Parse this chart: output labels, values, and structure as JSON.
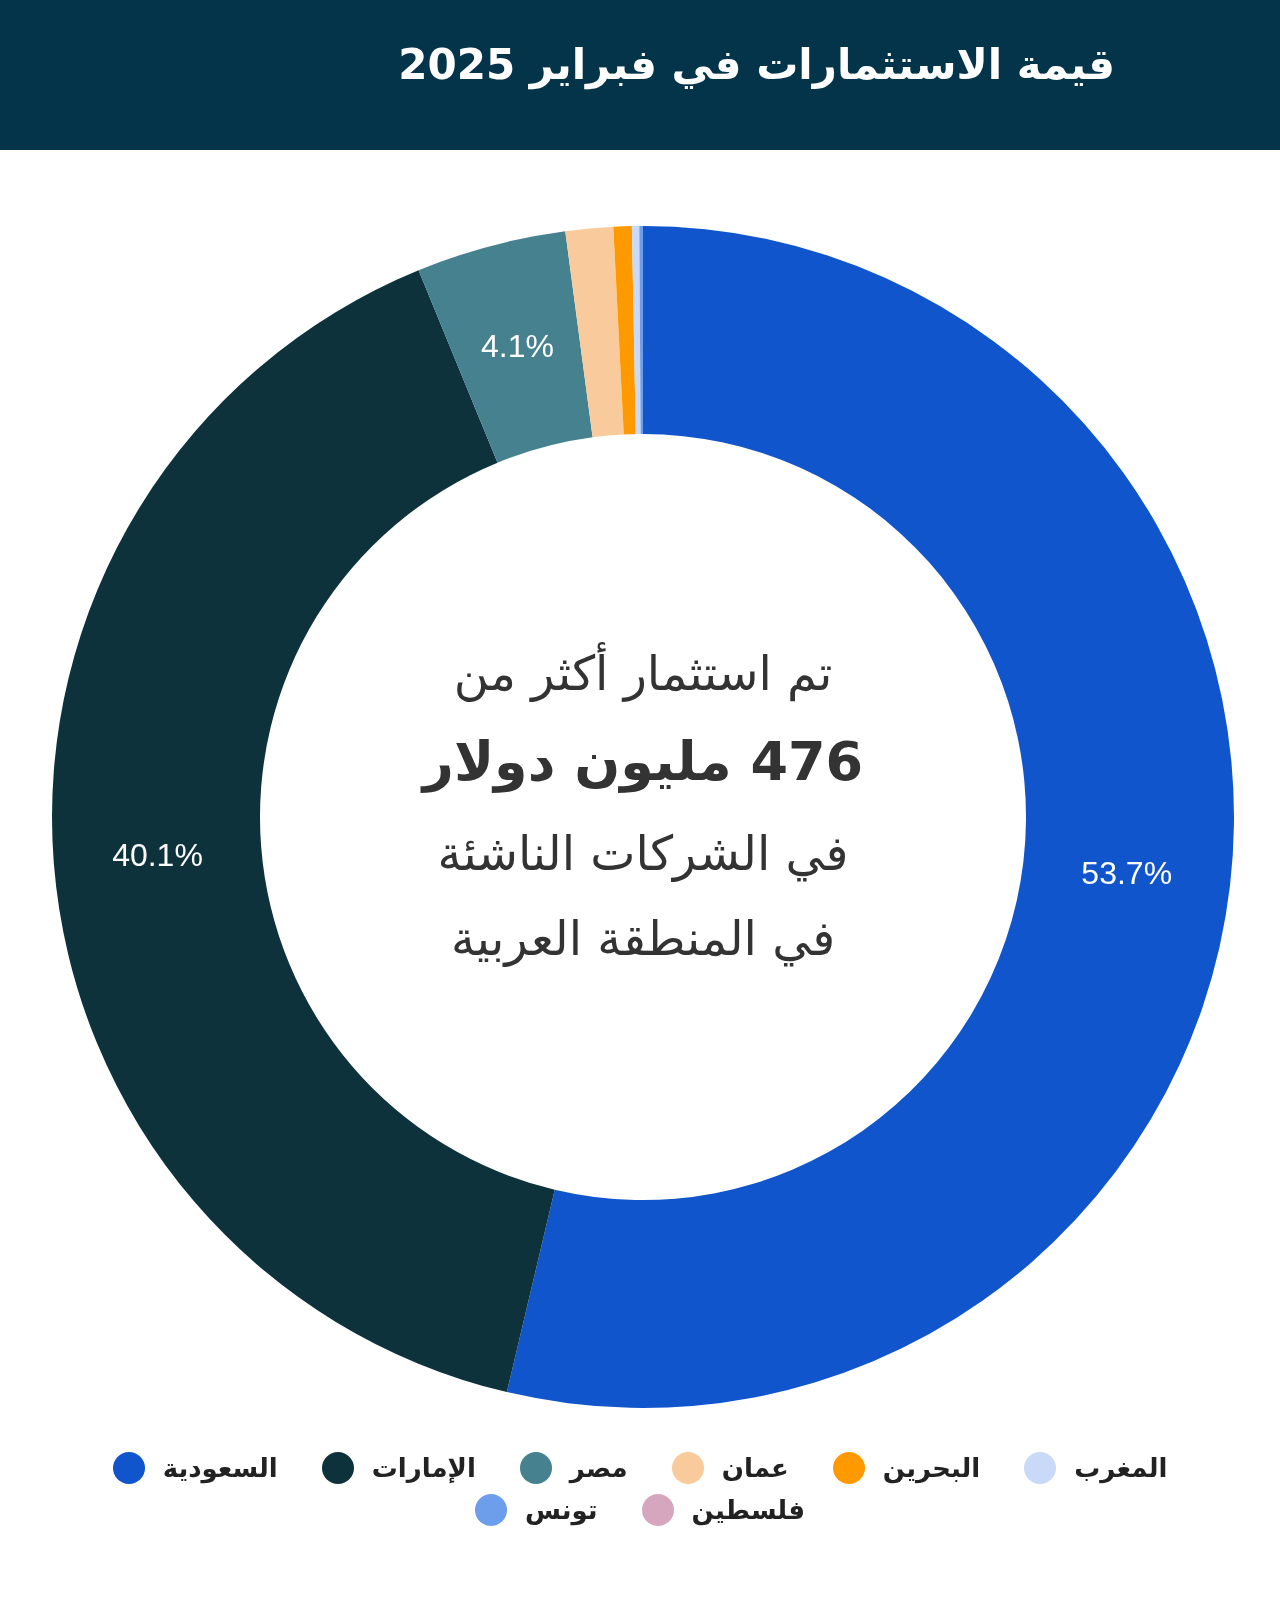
{
  "chart_data": {
    "type": "donut",
    "title": "قيمة الاستثمارات في فبراير 2025",
    "categories": [
      "السعودية",
      "الإمارات",
      "مصر",
      "عمان",
      "البحرين",
      "المغرب",
      "تونس",
      "فلسطين"
    ],
    "values": [
      53.7,
      40.1,
      4.1,
      1.3,
      0.5,
      0.2,
      0.1,
      0
    ],
    "colors": [
      "#1155cc",
      "#0e323c",
      "#45818e",
      "#f9cb9c",
      "#ff9900",
      "#c9daf8",
      "#6d9eeb",
      "#d5a6bd"
    ],
    "value_labels": [
      "53.7%",
      "40.1%",
      "4.1%",
      null,
      null,
      null,
      null,
      null
    ],
    "annotations": [
      "تم استثمار أكثر من",
      "476 مليون دولار",
      "في الشركات الناشئة",
      "في المنطقة العربية"
    ],
    "legend": "bottom"
  }
}
